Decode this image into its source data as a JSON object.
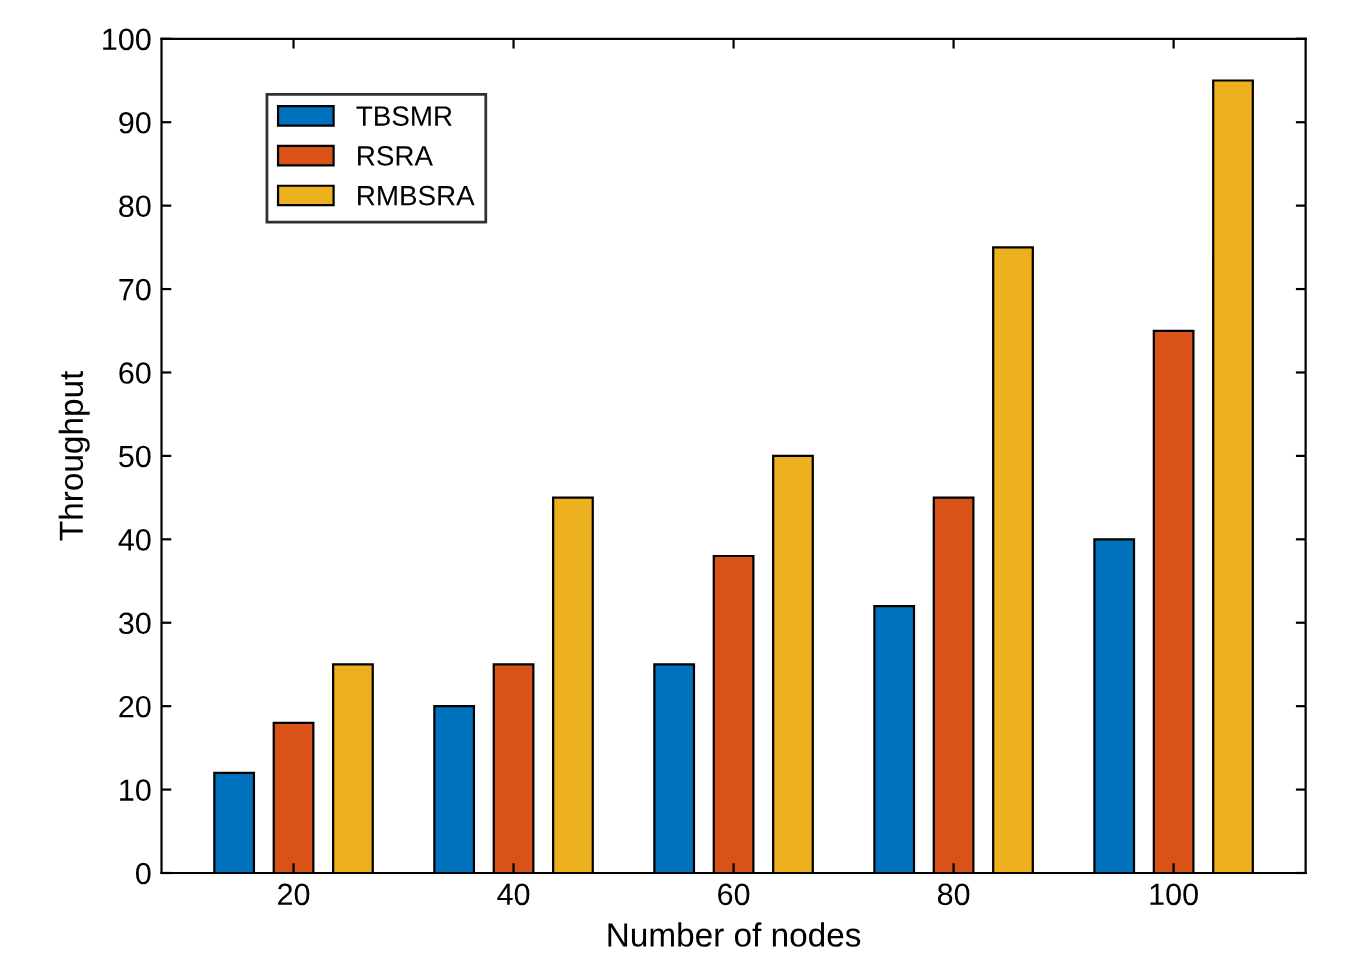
{
  "chart_data": {
    "type": "bar",
    "xlabel": "Number of nodes",
    "ylabel": "Throughput",
    "categories": [
      "20",
      "40",
      "60",
      "80",
      "100"
    ],
    "series": [
      {
        "name": "TBSMR",
        "color": "#0072bd",
        "values": [
          12,
          20,
          25,
          32,
          40
        ]
      },
      {
        "name": "RSRA",
        "color": "#d95319",
        "values": [
          18,
          25,
          38,
          45,
          65
        ]
      },
      {
        "name": "RMBSRA",
        "color": "#edb120",
        "values": [
          25,
          45,
          50,
          75,
          95
        ]
      }
    ],
    "ylim": [
      0,
      100
    ],
    "yticks": [
      0,
      10,
      20,
      30,
      40,
      50,
      60,
      70,
      80,
      90,
      100
    ],
    "grid": false,
    "legend": "top left"
  }
}
